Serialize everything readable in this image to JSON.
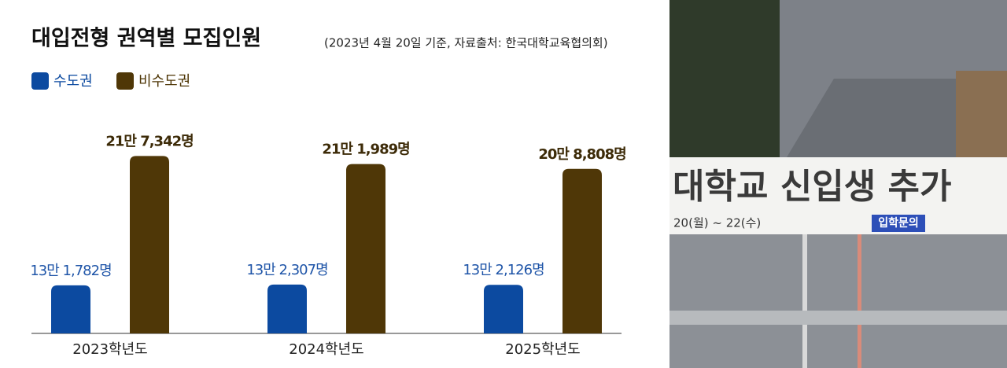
{
  "chart_data": {
    "type": "bar",
    "title": "대입전형 권역별 모집인원",
    "subtitle": "(2023년 4월 20일 기준, 자료출처: 한국대학교육협의회)",
    "categories": [
      "2023학년도",
      "2024학년도",
      "2025학년도"
    ],
    "series": [
      {
        "name": "수도권",
        "color": "#0c4aa0",
        "values": [
          131782,
          132307,
          132126
        ],
        "value_labels": [
          "13만 1,782명",
          "13만 2,307명",
          "13만 2,126명"
        ]
      },
      {
        "name": "비수도권",
        "color": "#4f3707",
        "values": [
          217342,
          211989,
          208808
        ],
        "value_labels": [
          "21만 7,342명",
          "21만 1,989명",
          "20만 8,808명"
        ]
      }
    ],
    "ylim": [
      100000,
      230000
    ]
  },
  "photo": {
    "banner": "대학교 신입생 추가",
    "dates": "20(월) ~ 22(수)",
    "tag": "입학문의"
  }
}
